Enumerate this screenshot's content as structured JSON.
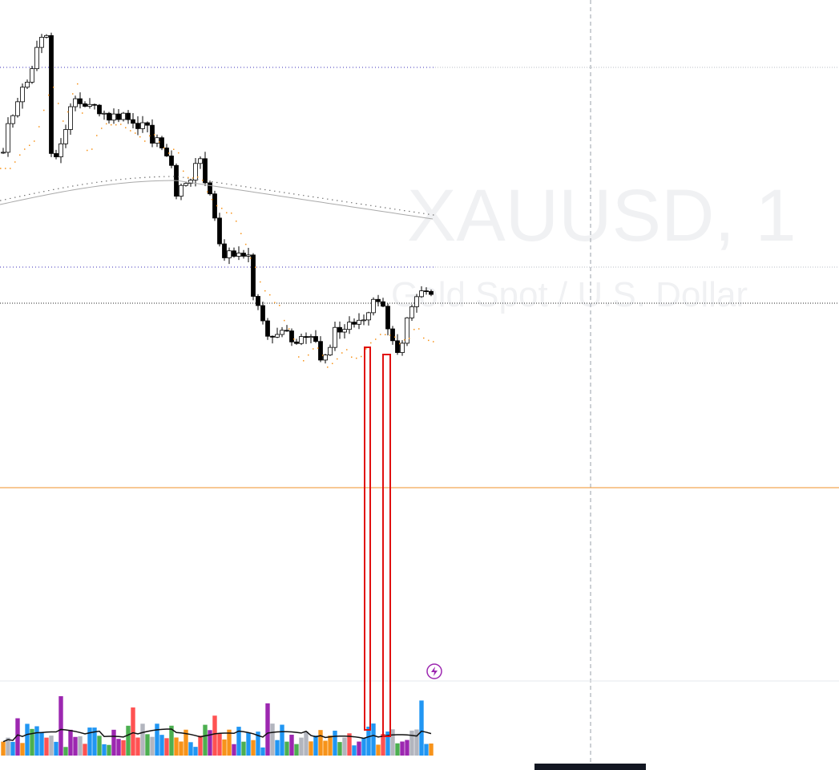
{
  "watermark": {
    "symbol": "XAUUSD, 1",
    "description": "Gold Spot / U.S. Dollar"
  }
}
